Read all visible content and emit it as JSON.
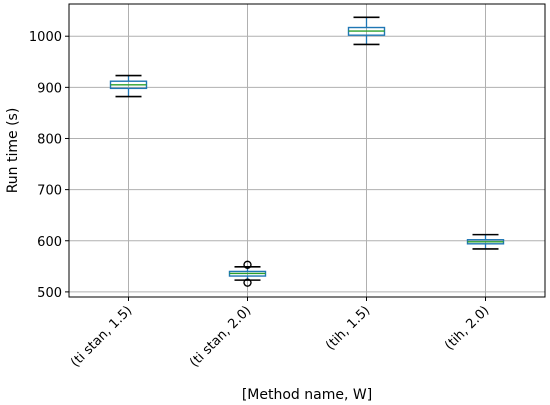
{
  "chart_data": {
    "type": "box",
    "title": "",
    "xlabel": "[Method name, W]",
    "ylabel": "Run time (s)",
    "ylim": [
      490,
      1063
    ],
    "yticks": [
      500,
      600,
      700,
      800,
      900,
      1000
    ],
    "grid": true,
    "categories": [
      "(ti stan, 1.5)",
      "(ti stan, 2.0)",
      "(tih, 1.5)",
      "(tih, 2.0)"
    ],
    "boxes": [
      {
        "label": "(ti stan, 1.5)",
        "whisker_low": 882,
        "q1": 898,
        "median": 905,
        "q3": 912,
        "whisker_high": 923,
        "outliers": []
      },
      {
        "label": "(ti stan, 2.0)",
        "whisker_low": 523,
        "q1": 531,
        "median": 536,
        "q3": 540,
        "whisker_high": 549,
        "outliers": [
          518,
          553
        ]
      },
      {
        "label": "(tih, 1.5)",
        "whisker_low": 984,
        "q1": 1002,
        "median": 1010,
        "q3": 1017,
        "whisker_high": 1037,
        "outliers": []
      },
      {
        "label": "(tih, 2.0)",
        "whisker_low": 584,
        "q1": 594,
        "median": 598,
        "q3": 602,
        "whisker_high": 612,
        "outliers": []
      }
    ],
    "colors": {
      "box": "#1f77b4",
      "median": "#2ca02c",
      "whisker": "#000000",
      "grid": "#b0b0b0"
    }
  }
}
